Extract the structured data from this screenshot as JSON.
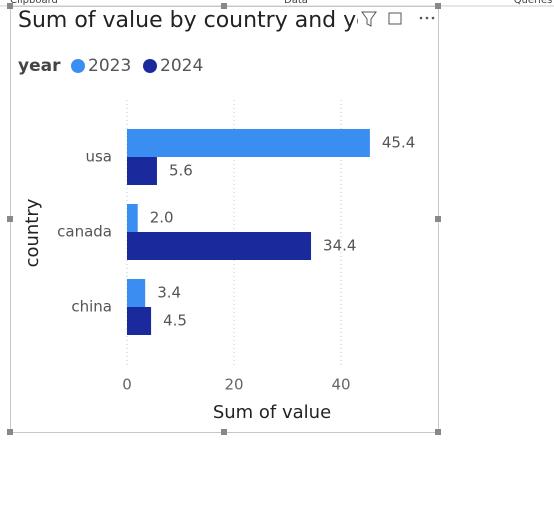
{
  "ribbon": {
    "tabs": [
      "Clipboard",
      "Data",
      "Queries"
    ]
  },
  "chart_data": {
    "type": "hbar",
    "title": "Sum of value by country and year",
    "legend_title": "year",
    "x_label": "Sum of value",
    "y_label": "country",
    "categories": [
      "usa",
      "canada",
      "china"
    ],
    "series": [
      {
        "name": "2023",
        "color": "#3a8ef2",
        "values": [
          45.4,
          2,
          3.4
        ],
        "value_labels": [
          "45.4",
          "2.0",
          "3.4"
        ]
      },
      {
        "name": "2024",
        "color": "#1a2a9c",
        "values": [
          5.6,
          34.4,
          4.5
        ],
        "value_labels": [
          "5.6",
          "34.4",
          "4.5"
        ]
      }
    ],
    "xlim": [
      0,
      50
    ],
    "xticks": [
      0,
      20,
      40
    ],
    "grid": true
  }
}
